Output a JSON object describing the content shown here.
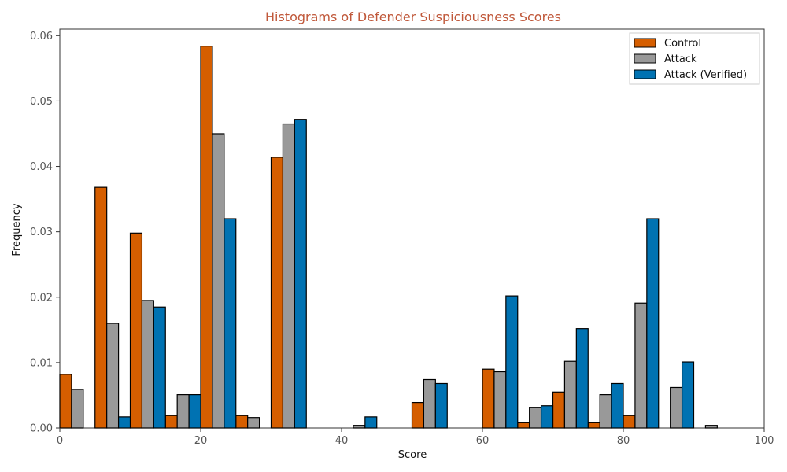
{
  "chart_data": {
    "type": "bar",
    "title": "Histograms of Defender Suspiciousness Scores",
    "xlabel": "Score",
    "ylabel": "Frequency",
    "xlim": [
      0,
      100
    ],
    "ylim": [
      0,
      0.061
    ],
    "xticks": [
      0,
      20,
      40,
      60,
      80,
      100
    ],
    "yticks": [
      0.0,
      0.01,
      0.02,
      0.03,
      0.04,
      0.05,
      0.06
    ],
    "ytick_labels": [
      "0.00",
      "0.01",
      "0.02",
      "0.03",
      "0.04",
      "0.05",
      "0.06"
    ],
    "bin_edges": [
      0,
      5,
      10,
      15,
      20,
      25,
      30,
      35,
      40,
      45,
      50,
      55,
      60,
      65,
      70,
      75,
      80,
      85,
      90,
      95,
      100
    ],
    "legend_position": "top-right",
    "grid": false,
    "series": [
      {
        "name": "Control",
        "color": "#d55e00",
        "values": [
          0.0082,
          0.0368,
          0.0298,
          0.0019,
          0.0584,
          0.0019,
          0.0414,
          0,
          0,
          0,
          0.0039,
          0,
          0.009,
          0.0008,
          0.0055,
          0.0008,
          0.0019,
          0,
          0,
          0
        ]
      },
      {
        "name": "Attack",
        "color": "#999999",
        "values": [
          0.0059,
          0.016,
          0.0195,
          0.0051,
          0.045,
          0.0016,
          0.0465,
          0,
          0.0004,
          0,
          0.0074,
          0,
          0.0086,
          0.0031,
          0.0102,
          0.0051,
          0.0191,
          0.0062,
          0.0004,
          0
        ]
      },
      {
        "name": "Attack (Verified)",
        "color": "#0072b2",
        "values": [
          0,
          0.0017,
          0.0185,
          0.0051,
          0.032,
          0,
          0.0472,
          0,
          0.0017,
          0,
          0.0068,
          0,
          0.0202,
          0.0034,
          0.0152,
          0.0068,
          0.032,
          0.0101,
          0,
          0
        ]
      }
    ]
  }
}
